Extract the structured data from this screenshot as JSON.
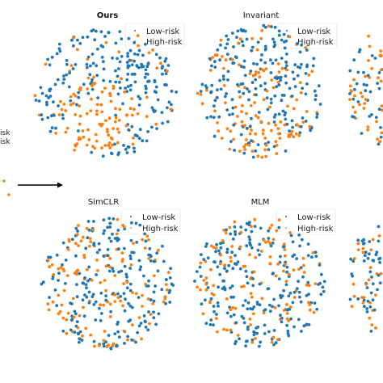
{
  "colors": {
    "low_risk": "#1f77b4",
    "high_risk": "#ff7f0e"
  },
  "side_labels": [
    "isk",
    "isk"
  ],
  "chart_data": [
    {
      "type": "scatter",
      "title": "Ours",
      "legend": {
        "position": "top-right",
        "entries": [
          "Low-risk",
          "High-risk"
        ]
      },
      "axes": "hidden",
      "series": [
        {
          "name": "Low-risk",
          "description": "blue cluster upper-left and right"
        },
        {
          "name": "High-risk",
          "description": "orange cluster lower-center"
        }
      ]
    },
    {
      "type": "scatter",
      "title": "Invariant",
      "legend": {
        "position": "top-right",
        "entries": [
          "Low-risk",
          "High-risk"
        ]
      },
      "axes": "hidden",
      "series": [
        {
          "name": "Low-risk",
          "description": "blue points spread across center"
        },
        {
          "name": "High-risk",
          "description": "orange points mixed, more at bottom"
        }
      ]
    },
    {
      "type": "scatter",
      "title": "SimCLR",
      "legend": {
        "position": "top-right",
        "entries": [
          "Low-risk",
          "High-risk"
        ]
      },
      "axes": "hidden",
      "series": [
        {
          "name": "Low-risk",
          "description": "blue points widely mixed"
        },
        {
          "name": "High-risk",
          "description": "orange points widely mixed"
        }
      ]
    },
    {
      "type": "scatter",
      "title": "MLM",
      "legend": {
        "position": "top-right",
        "entries": [
          "Low-risk",
          "High-risk"
        ]
      },
      "axes": "hidden",
      "series": [
        {
          "name": "Low-risk",
          "description": "blue points widely mixed"
        },
        {
          "name": "High-risk",
          "description": "orange points widely mixed"
        }
      ]
    }
  ]
}
